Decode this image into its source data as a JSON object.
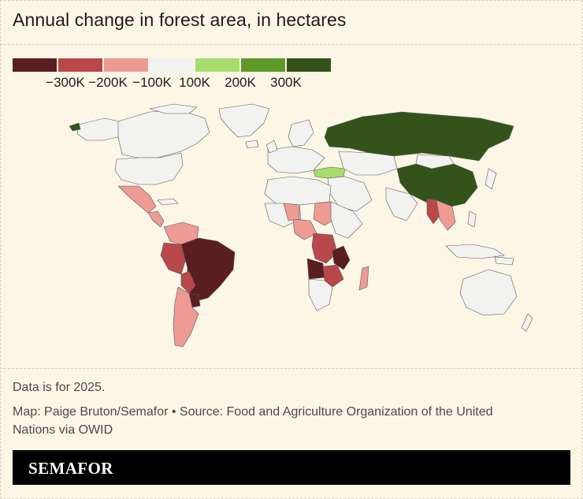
{
  "title": "Annual change in forest area, in hectares",
  "legend": {
    "swatches": [
      {
        "color": "#5a1e20"
      },
      {
        "color": "#b8484a"
      },
      {
        "color": "#ee9a95"
      },
      {
        "color": "#f2f2f0"
      },
      {
        "color": "#a8dc6c"
      },
      {
        "color": "#5e9a2a"
      },
      {
        "color": "#33531a"
      }
    ],
    "ticks": [
      "−300K",
      "−200K",
      "−100K",
      "100K",
      "200K",
      "300K"
    ]
  },
  "map": {
    "colors": {
      "neutral": "#f2f2f0",
      "border": "#5a5a5a",
      "dark_red": "#5a1e20",
      "mid_red": "#b8484a",
      "light_red": "#ee9a95",
      "light_green": "#a8dc6c",
      "mid_green": "#5e9a2a",
      "dark_green": "#33531a"
    }
  },
  "notes": {
    "data_year": "Data is for 2025.",
    "credit_line1": "Map: Paige Bruton/Semafor • Source: Food and Agriculture Organization of the United",
    "credit_line2": "Nations via OWID"
  },
  "brand": {
    "logo_text": "SEMAFOR"
  }
}
